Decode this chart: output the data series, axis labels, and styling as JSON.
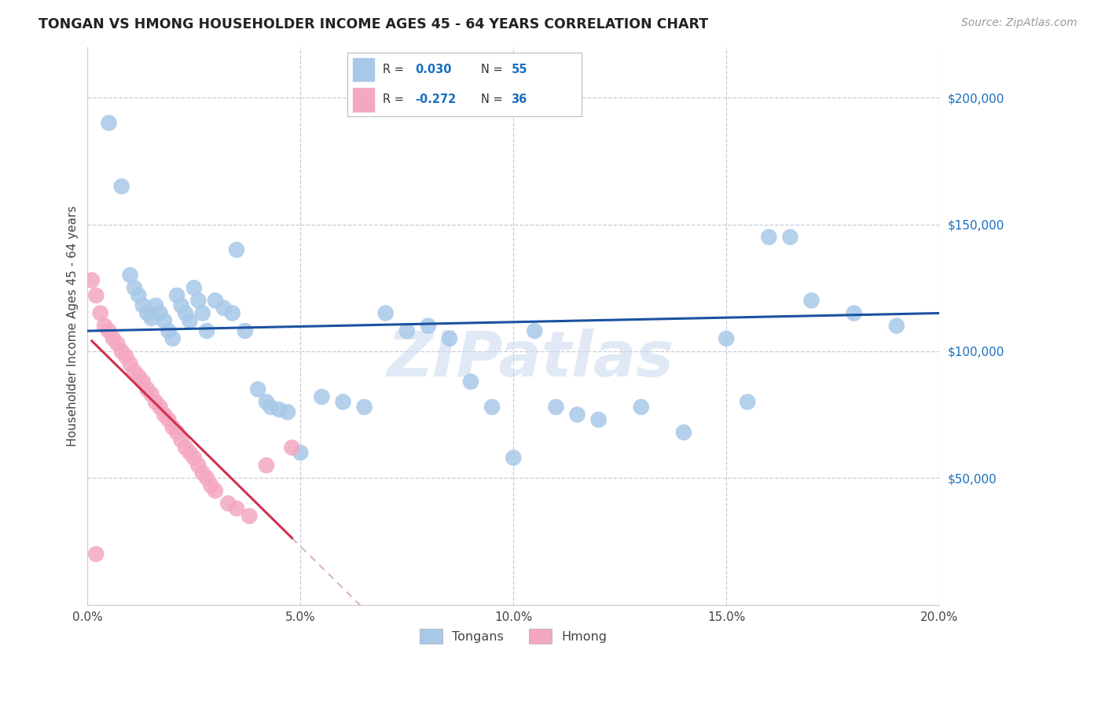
{
  "title": "TONGAN VS HMONG HOUSEHOLDER INCOME AGES 45 - 64 YEARS CORRELATION CHART",
  "source": "Source: ZipAtlas.com",
  "ylabel": "Householder Income Ages 45 - 64 years",
  "xlim": [
    0.0,
    0.2
  ],
  "ylim": [
    0,
    220000
  ],
  "yticks": [
    0,
    50000,
    100000,
    150000,
    200000
  ],
  "xticks": [
    0.0,
    0.05,
    0.1,
    0.15,
    0.2
  ],
  "tongan_color": "#a8c8e8",
  "hmong_color": "#f4a8c0",
  "tongan_line_color": "#1a52a0",
  "hmong_line_color": "#d03050",
  "hmong_dash_color": "#d8a8b8",
  "watermark": "ZIPatlas",
  "background_color": "#ffffff",
  "grid_color": "#c8ccd8",
  "tongan_x": [
    0.005,
    0.008,
    0.01,
    0.011,
    0.012,
    0.013,
    0.014,
    0.015,
    0.016,
    0.017,
    0.018,
    0.019,
    0.02,
    0.021,
    0.022,
    0.023,
    0.024,
    0.025,
    0.026,
    0.027,
    0.028,
    0.03,
    0.032,
    0.034,
    0.035,
    0.037,
    0.04,
    0.042,
    0.043,
    0.045,
    0.047,
    0.05,
    0.055,
    0.06,
    0.065,
    0.07,
    0.075,
    0.08,
    0.085,
    0.09,
    0.095,
    0.1,
    0.105,
    0.11,
    0.115,
    0.12,
    0.13,
    0.14,
    0.15,
    0.155,
    0.16,
    0.165,
    0.17,
    0.18,
    0.19
  ],
  "tongan_y": [
    190000,
    165000,
    130000,
    125000,
    122000,
    118000,
    115000,
    113000,
    118000,
    115000,
    112000,
    108000,
    105000,
    122000,
    118000,
    115000,
    112000,
    125000,
    120000,
    115000,
    108000,
    120000,
    117000,
    115000,
    140000,
    108000,
    85000,
    80000,
    78000,
    77000,
    76000,
    60000,
    82000,
    80000,
    78000,
    115000,
    108000,
    110000,
    105000,
    88000,
    78000,
    58000,
    108000,
    78000,
    75000,
    73000,
    78000,
    68000,
    105000,
    80000,
    145000,
    145000,
    120000,
    115000,
    110000
  ],
  "hmong_x": [
    0.001,
    0.002,
    0.003,
    0.004,
    0.005,
    0.006,
    0.007,
    0.008,
    0.009,
    0.01,
    0.011,
    0.012,
    0.013,
    0.014,
    0.015,
    0.016,
    0.017,
    0.018,
    0.019,
    0.02,
    0.021,
    0.022,
    0.023,
    0.024,
    0.025,
    0.026,
    0.027,
    0.028,
    0.029,
    0.03,
    0.033,
    0.035,
    0.038,
    0.042,
    0.048,
    0.002
  ],
  "hmong_y": [
    128000,
    122000,
    115000,
    110000,
    108000,
    105000,
    103000,
    100000,
    98000,
    95000,
    92000,
    90000,
    88000,
    85000,
    83000,
    80000,
    78000,
    75000,
    73000,
    70000,
    68000,
    65000,
    62000,
    60000,
    58000,
    55000,
    52000,
    50000,
    47000,
    45000,
    40000,
    38000,
    35000,
    55000,
    62000,
    20000
  ]
}
